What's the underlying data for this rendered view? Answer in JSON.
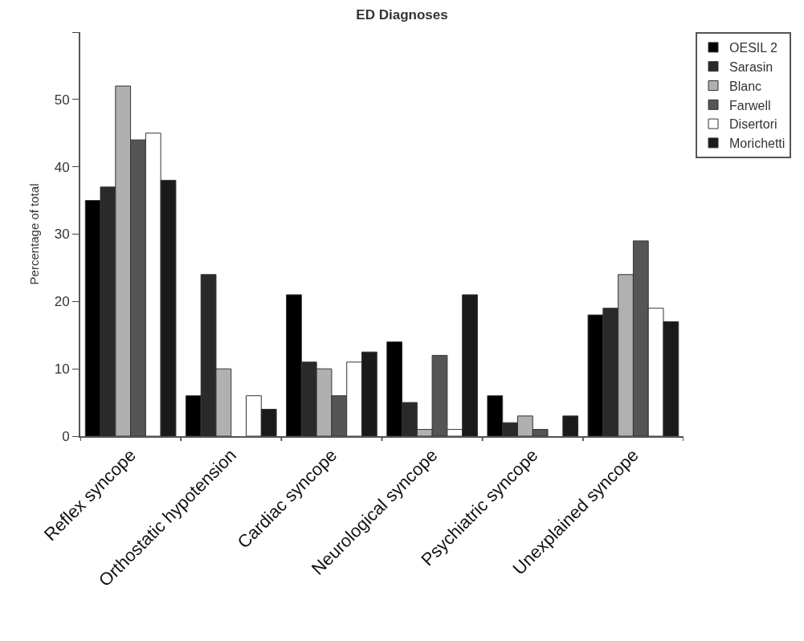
{
  "chart_data": {
    "type": "bar",
    "title": "ED Diagnoses",
    "ylabel": "Percentage of total",
    "categories": [
      "Reflex syncope",
      "Orthostatic hypotension",
      "Cardiac syncope",
      "Neurological syncope",
      "Psychiatric syncope",
      "Unexplained syncope"
    ],
    "series": [
      {
        "name": "OESIL 2",
        "color": "#000000",
        "values": [
          35,
          6,
          21,
          14,
          6,
          18
        ]
      },
      {
        "name": "Sarasin",
        "color": "#2a2a2a",
        "values": [
          37,
          24,
          11,
          5,
          2,
          19
        ]
      },
      {
        "name": "Blanc",
        "color": "#b0b0b0",
        "values": [
          52,
          10,
          10,
          1,
          3,
          24
        ]
      },
      {
        "name": "Farwell",
        "color": "#555555",
        "values": [
          44,
          0,
          6,
          12,
          1,
          29
        ]
      },
      {
        "name": "Disertori",
        "color": "#ffffff",
        "values": [
          45,
          6,
          11,
          1,
          0,
          19
        ]
      },
      {
        "name": "Morichetti",
        "color": "#1a1a1a",
        "values": [
          38,
          4,
          12.5,
          21,
          3,
          17
        ]
      }
    ],
    "ylim": [
      0,
      60
    ],
    "yticks": [
      0,
      10,
      20,
      30,
      40,
      50,
      {
        "value": 60,
        "label": null
      }
    ],
    "grid": false,
    "legend": "top right"
  }
}
